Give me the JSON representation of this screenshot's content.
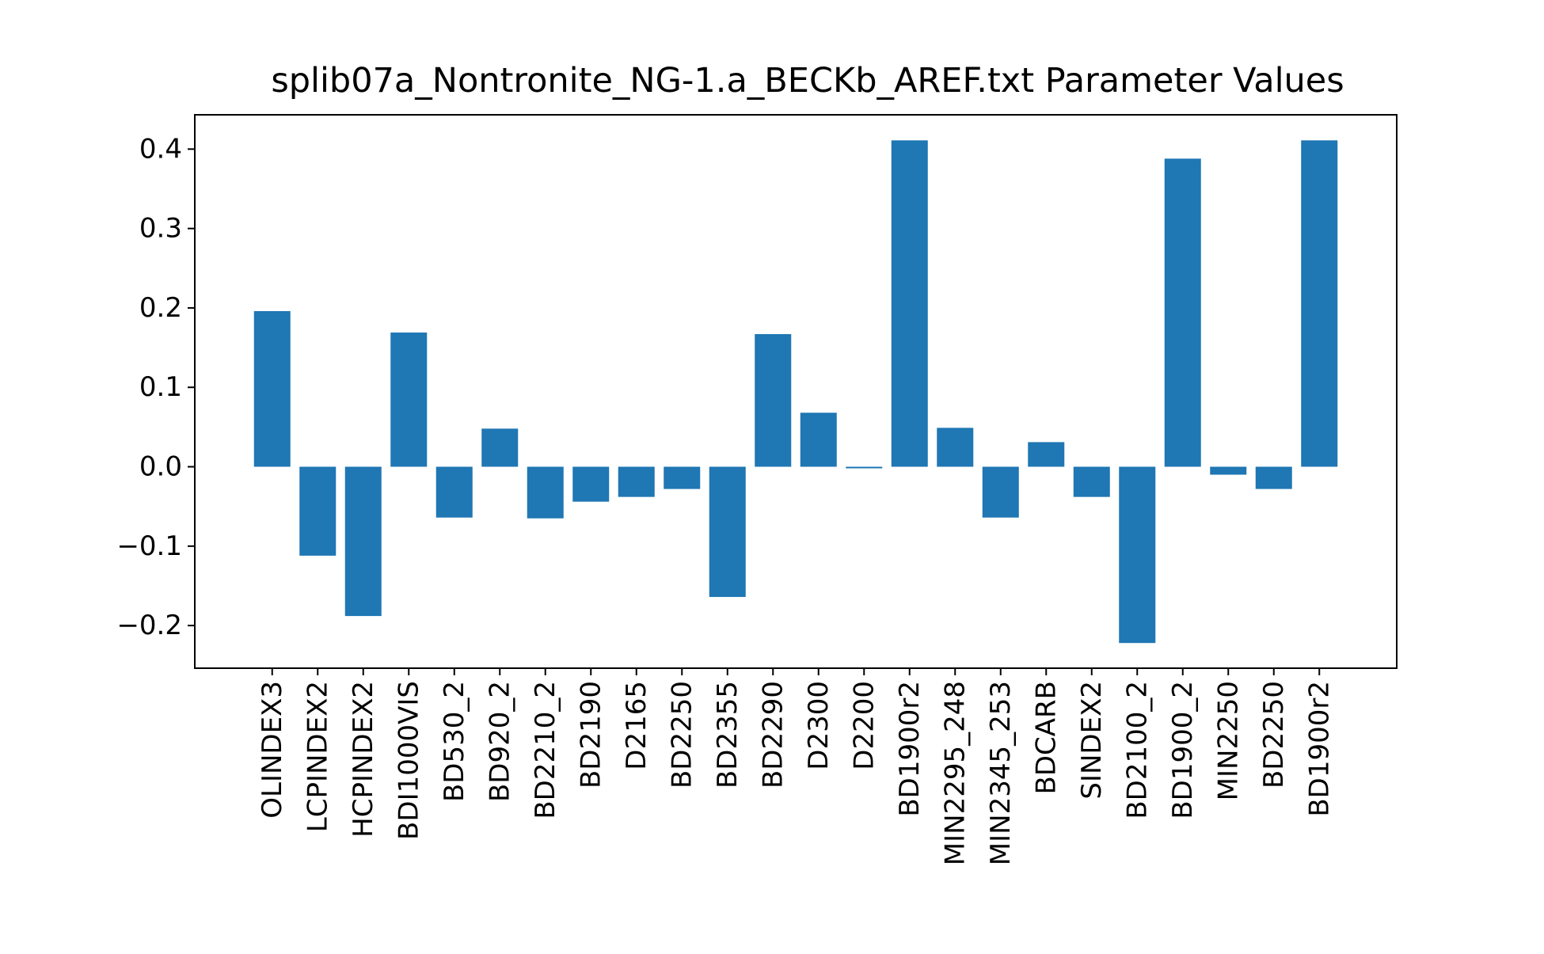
{
  "chart_data": {
    "type": "bar",
    "title": "splib07a_Nontronite_NG-1.a_BECKb_AREF.txt Parameter Values",
    "xlabel": "",
    "ylabel": "",
    "categories": [
      "OLINDEX3",
      "LCPINDEX2",
      "HCPINDEX2",
      "BDI1000VIS",
      "BD530_2",
      "BD920_2",
      "BD2210_2",
      "BD2190",
      "D2165",
      "BD2250",
      "BD2355",
      "BD2290",
      "D2300",
      "D2200",
      "BD1900r2",
      "MIN2295_248",
      "MIN2345_253",
      "BDCARB",
      "SINDEX2",
      "BD2100_2",
      "BD1900_2",
      "MIN2250",
      "BD2250",
      "BD1900r2"
    ],
    "values": [
      0.196,
      -0.112,
      -0.188,
      0.169,
      -0.064,
      0.048,
      -0.065,
      -0.044,
      -0.038,
      -0.028,
      -0.164,
      0.167,
      0.068,
      -0.002,
      0.411,
      0.049,
      -0.064,
      0.031,
      -0.038,
      -0.222,
      0.388,
      -0.01,
      -0.028,
      0.411
    ],
    "yticks": [
      "−0.2",
      "−0.1",
      "0.0",
      "0.1",
      "0.2",
      "0.3",
      "0.4"
    ],
    "ytick_values": [
      -0.2,
      -0.1,
      0.0,
      0.1,
      0.2,
      0.3,
      0.4
    ],
    "ylim": [
      -0.2537,
      0.4432
    ],
    "grid": false,
    "bar_color": "#1f77b4"
  }
}
